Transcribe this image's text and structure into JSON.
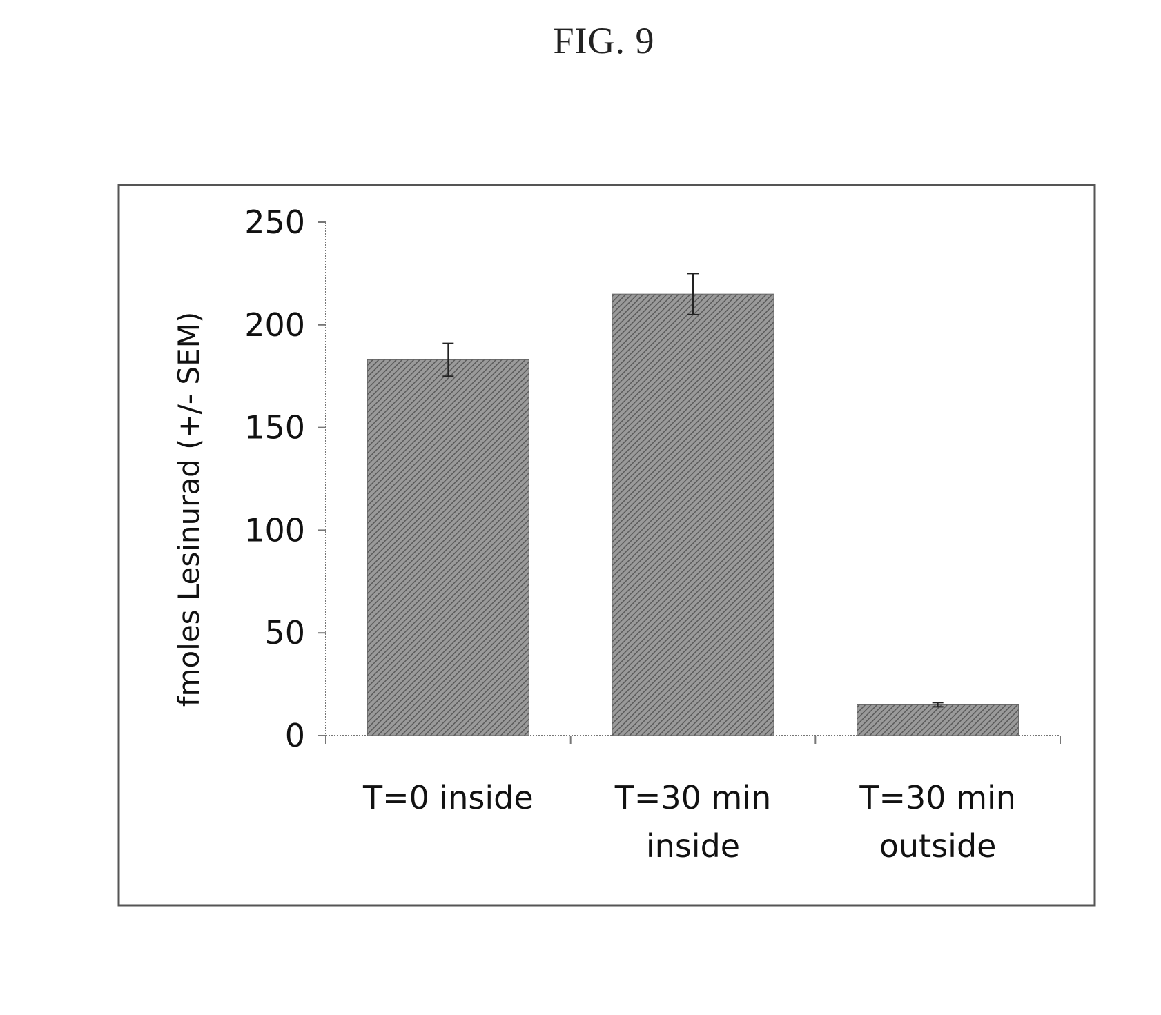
{
  "figure": {
    "label": "FIG. 9"
  },
  "colors": {
    "bar_fill": "#8c8c8c",
    "bar_hatch": "#555555",
    "axis": "#777777",
    "frame": "#555555",
    "text": "#111111"
  },
  "chart_data": {
    "type": "bar",
    "title": "",
    "ylabel": "fmoles Lesinurad (+/- SEM)",
    "xlabel": "",
    "ylim": [
      0,
      250
    ],
    "yticks": [
      0,
      50,
      100,
      150,
      200,
      250
    ],
    "categories": [
      [
        "T=0 inside"
      ],
      [
        "T=30 min",
        "inside"
      ],
      [
        "T=30 min",
        "outside"
      ]
    ],
    "values": [
      183,
      215,
      15
    ],
    "errors": [
      8,
      10,
      1
    ],
    "error_label": "SEM",
    "legend": "none",
    "grid": false
  }
}
